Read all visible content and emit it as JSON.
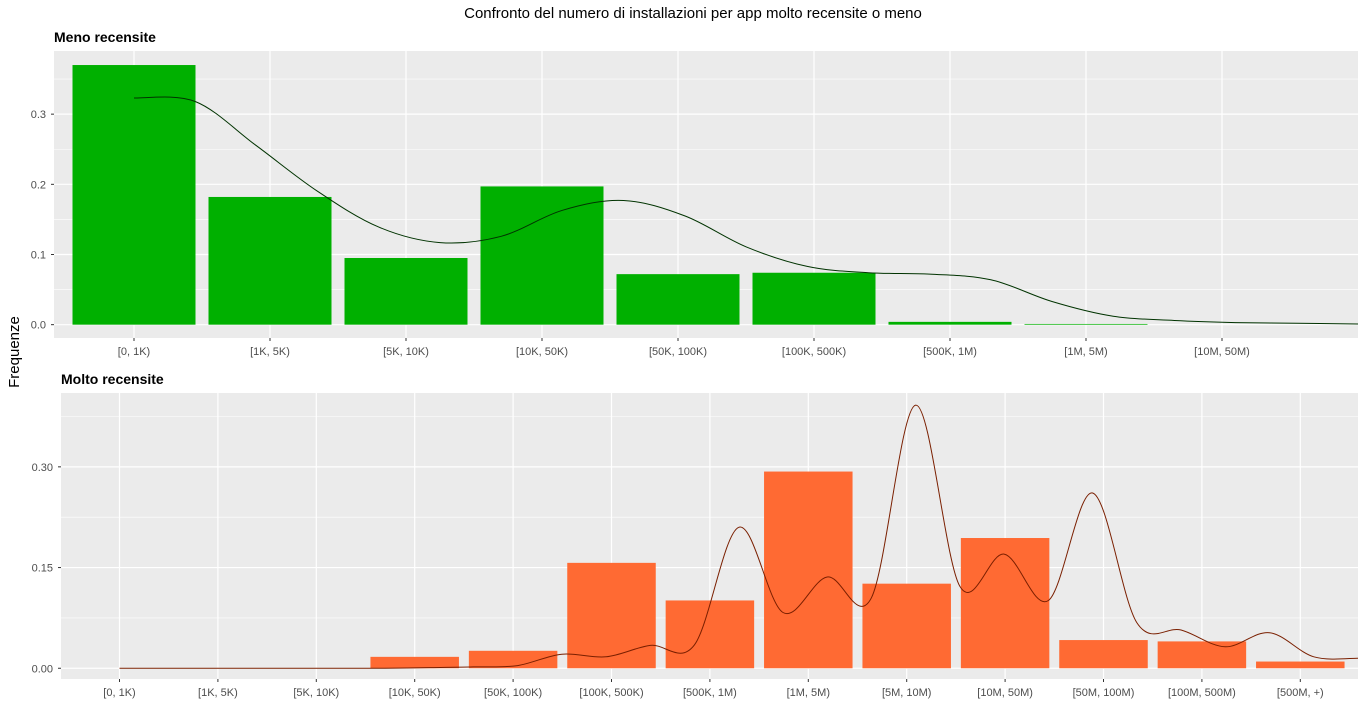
{
  "title": "Confronto del numero di installazioni per app molto recensite o meno",
  "ylabel": "Frequenze",
  "colors": {
    "panel_bg": "#EBEBEB",
    "grid": "#FFFFFF",
    "tick_text": "#4D4D4D"
  },
  "chart_data": [
    {
      "type": "bar",
      "title": "Meno recensite",
      "categories": [
        "[0, 1K)",
        "[1K, 5K)",
        "[5K, 10K)",
        "[10K, 50K)",
        "[50K, 100K)",
        "[100K, 500K)",
        "[500K, 1M)",
        "[1M, 5M)",
        "[10M, 50M)"
      ],
      "values": [
        0.37,
        0.182,
        0.095,
        0.197,
        0.072,
        0.074,
        0.004,
        0.001,
        0.0
      ],
      "density": [
        0.323,
        0.318,
        0.255,
        0.19,
        0.139,
        0.117,
        0.126,
        0.163,
        0.177,
        0.155,
        0.111,
        0.083,
        0.074,
        0.072,
        0.064,
        0.033,
        0.012,
        0.006,
        0.003,
        0.002,
        0.001
      ],
      "bar_color": "#00B000",
      "line_color": "#003300",
      "yticks": [
        0.0,
        0.1,
        0.2,
        0.3
      ],
      "ytick_labels": [
        "0.0",
        "0.1",
        "0.2",
        "0.3"
      ],
      "ylim": [
        -0.019,
        0.39
      ],
      "grid": true
    },
    {
      "type": "bar",
      "title": "Molto recensite",
      "categories": [
        "[0, 1K)",
        "[1K, 5K)",
        "[5K, 10K)",
        "[10K, 50K)",
        "[50K, 100K)",
        "[100K, 500K)",
        "[500K, 1M)",
        "[1M, 5M)",
        "[5M, 10M)",
        "[10M, 50M)",
        "[50M, 100M)",
        "[100M, 500M)",
        "[500M, +)"
      ],
      "values": [
        0.0,
        0.0,
        0.0,
        0.017,
        0.026,
        0.157,
        0.101,
        0.293,
        0.126,
        0.194,
        0.042,
        0.04,
        0.01
      ],
      "density": [
        0.0,
        0.0,
        0.0,
        0.0,
        0.0,
        0.0,
        0.0,
        0.001,
        0.002,
        0.004,
        0.021,
        0.017,
        0.034,
        0.035,
        0.21,
        0.083,
        0.136,
        0.105,
        0.392,
        0.122,
        0.17,
        0.101,
        0.261,
        0.068,
        0.057,
        0.032,
        0.053,
        0.017,
        0.015
      ],
      "bar_color": "#FF6A33",
      "line_color": "#7A1F00",
      "yticks": [
        0.0,
        0.15,
        0.3
      ],
      "ytick_labels": [
        "0.00",
        "0.15",
        "0.30"
      ],
      "ylim": [
        -0.016,
        0.41
      ],
      "grid": true
    }
  ]
}
